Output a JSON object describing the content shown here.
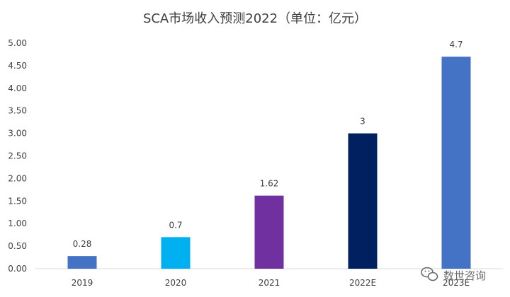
{
  "chart_data": {
    "type": "bar",
    "title": "SCA市场收入预测2022（单位：亿元）",
    "categories": [
      "2019",
      "2020",
      "2021",
      "2022E",
      "2023E"
    ],
    "values": [
      0.28,
      0.7,
      1.62,
      3,
      4.7
    ],
    "value_labels": [
      "0.28",
      "0.7",
      "1.62",
      "3",
      "4.7"
    ],
    "bar_colors": [
      "#4472C4",
      "#00B0F0",
      "#7030A0",
      "#002060",
      "#4472C4"
    ],
    "ylim": [
      0,
      5
    ],
    "yticks": [
      "0.00",
      "0.50",
      "1.00",
      "1.50",
      "2.00",
      "2.50",
      "3.00",
      "3.50",
      "4.00",
      "4.50",
      "5.00"
    ],
    "xlabel": "",
    "ylabel": "",
    "grid": false,
    "legend": "none"
  },
  "watermark": {
    "text": "数世咨询",
    "icon": "wechat-icon"
  }
}
